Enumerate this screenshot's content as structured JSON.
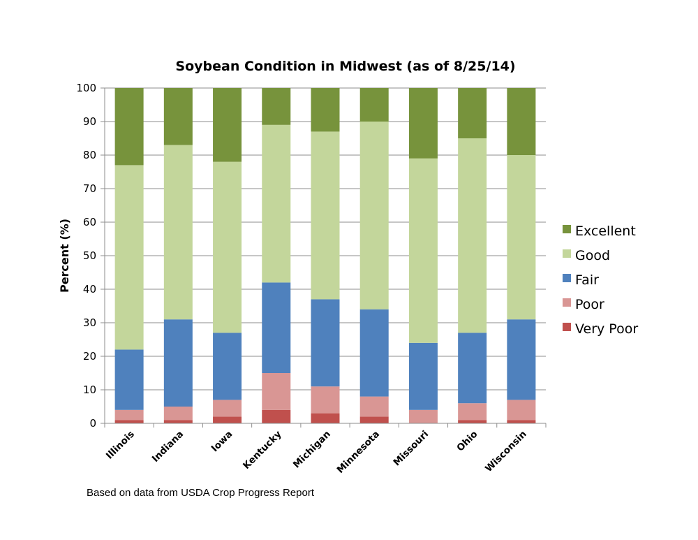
{
  "chart_data": {
    "type": "bar",
    "stacked": true,
    "title": "Soybean Condition in Midwest (as of 8/25/14)",
    "xlabel": "",
    "ylabel": "Percent (%)",
    "ylim": [
      0,
      100
    ],
    "yticks": [
      "0",
      "10",
      "20",
      "30",
      "40",
      "50",
      "60",
      "70",
      "80",
      "90",
      "100"
    ],
    "grid": true,
    "legend_position": "right",
    "categories": [
      "Illinois",
      "Indiana",
      "Iowa",
      "Kentucky",
      "Michigan",
      "Minnesota",
      "Missouri",
      "Ohio",
      "Wisconsin"
    ],
    "series": [
      {
        "name": "Very Poor",
        "color": "#c0504d",
        "values": [
          1,
          1,
          2,
          4,
          3,
          2,
          0,
          1,
          1
        ]
      },
      {
        "name": "Poor",
        "color": "#d99694",
        "values": [
          3,
          4,
          5,
          11,
          8,
          6,
          4,
          5,
          6
        ]
      },
      {
        "name": "Fair",
        "color": "#4f81bd",
        "values": [
          18,
          26,
          20,
          27,
          26,
          26,
          20,
          21,
          24
        ]
      },
      {
        "name": "Good",
        "color": "#c3d69b",
        "values": [
          55,
          52,
          51,
          47,
          50,
          56,
          55,
          58,
          49
        ]
      },
      {
        "name": "Excellent",
        "color": "#77933c",
        "values": [
          23,
          17,
          22,
          11,
          13,
          10,
          21,
          15,
          20
        ]
      }
    ],
    "source_note": "Based on data from USDA Crop Progress Report"
  }
}
